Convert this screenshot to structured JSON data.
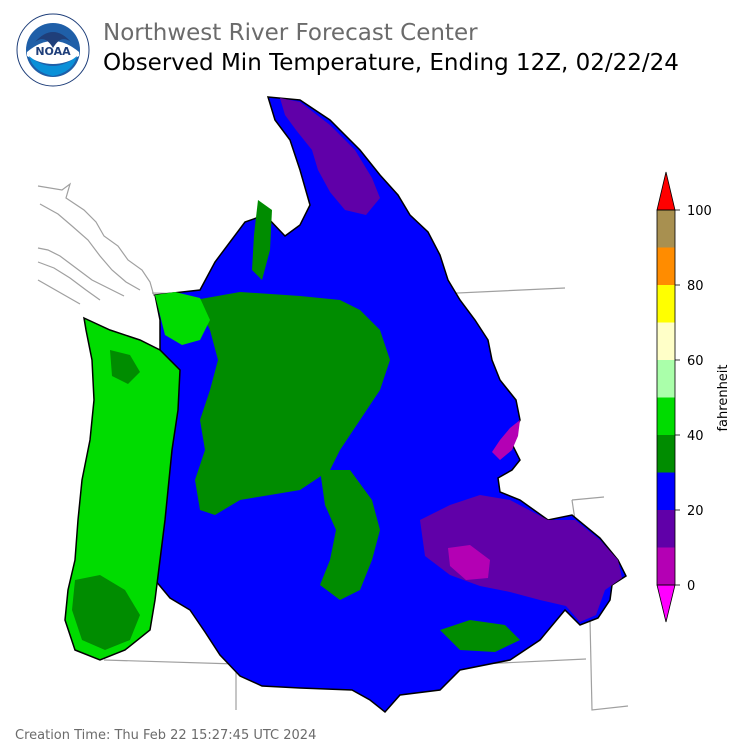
{
  "header": {
    "agency": "Northwest River Forecast Center",
    "product": "Observed Min Temperature, Ending 12Z, 02/22/24",
    "logo_text": "NOAA"
  },
  "legend": {
    "unit": "fahrenheit",
    "ticks": [
      "0",
      "20",
      "40",
      "60",
      "80",
      "100"
    ],
    "bins": [
      {
        "range": "0-10",
        "color": "#b400b4"
      },
      {
        "range": "10-20",
        "color": "#6000a8"
      },
      {
        "range": "20-30",
        "color": "#0000ff"
      },
      {
        "range": "30-40",
        "color": "#008c00"
      },
      {
        "range": "40-50",
        "color": "#00dc00"
      },
      {
        "range": "50-60",
        "color": "#aaffaa"
      },
      {
        "range": "60-70",
        "color": "#ffffc8"
      },
      {
        "range": "70-80",
        "color": "#ffff00"
      },
      {
        "range": "80-90",
        "color": "#ff8c00"
      },
      {
        "range": "90-100",
        "color": "#a89050"
      }
    ],
    "under_color": "#ff00ff",
    "over_color": "#ff0000"
  },
  "footer": {
    "creation_time": "Creation Time: Thu Feb 22 15:27:45 UTC 2024"
  }
}
